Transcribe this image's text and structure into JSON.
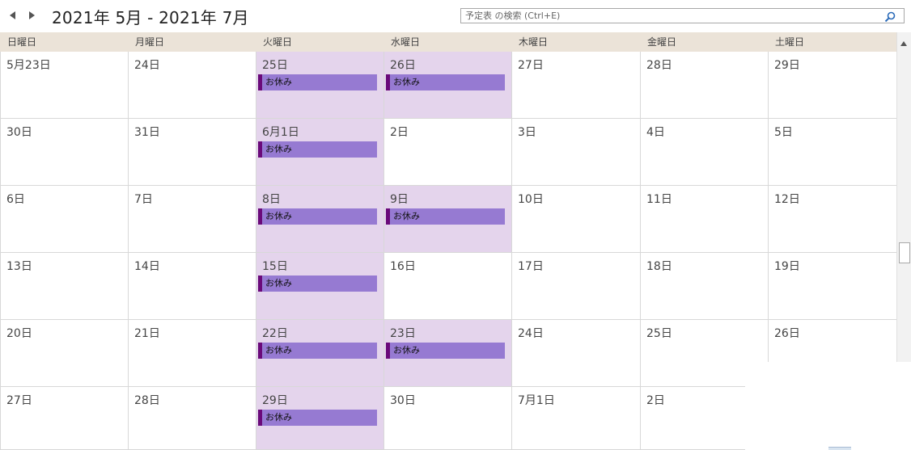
{
  "header": {
    "range_title": "2021年 5月 - 2021年 7月",
    "search_placeholder": "予定表 の検索 (Ctrl+E)"
  },
  "weekdays": [
    "日曜日",
    "月曜日",
    "火曜日",
    "水曜日",
    "木曜日",
    "金曜日",
    "土曜日"
  ],
  "weeks": [
    [
      {
        "label": "5月23日"
      },
      {
        "label": "24日"
      },
      {
        "label": "25日",
        "event": "お休み"
      },
      {
        "label": "26日",
        "event": "お休み"
      },
      {
        "label": "27日"
      },
      {
        "label": "28日"
      },
      {
        "label": "29日"
      }
    ],
    [
      {
        "label": "30日"
      },
      {
        "label": "31日"
      },
      {
        "label": "6月1日",
        "event": "お休み"
      },
      {
        "label": "2日"
      },
      {
        "label": "3日"
      },
      {
        "label": "4日"
      },
      {
        "label": "5日"
      }
    ],
    [
      {
        "label": "6日"
      },
      {
        "label": "7日"
      },
      {
        "label": "8日",
        "event": "お休み"
      },
      {
        "label": "9日",
        "event": "お休み"
      },
      {
        "label": "10日"
      },
      {
        "label": "11日"
      },
      {
        "label": "12日"
      }
    ],
    [
      {
        "label": "13日"
      },
      {
        "label": "14日"
      },
      {
        "label": "15日",
        "event": "お休み"
      },
      {
        "label": "16日"
      },
      {
        "label": "17日"
      },
      {
        "label": "18日"
      },
      {
        "label": "19日"
      }
    ],
    [
      {
        "label": "20日"
      },
      {
        "label": "21日"
      },
      {
        "label": "22日",
        "event": "お休み"
      },
      {
        "label": "23日",
        "event": "お休み"
      },
      {
        "label": "24日"
      },
      {
        "label": "25日"
      },
      {
        "label": "26日"
      }
    ],
    [
      {
        "label": "27日"
      },
      {
        "label": "28日"
      },
      {
        "label": "29日",
        "event": "お休み"
      },
      {
        "label": "30日"
      },
      {
        "label": "7月1日"
      },
      {
        "label": "2日"
      },
      {
        "label": ""
      }
    ]
  ],
  "colors": {
    "header_bg": "#ebe3d8",
    "busy_day_bg": "#e4d4ec",
    "event_bg": "#967ad2",
    "event_accent": "#6a0a7a"
  },
  "icons": {
    "prev": "triangle-left-icon",
    "next": "triangle-right-icon",
    "search": "magnifier-icon"
  }
}
